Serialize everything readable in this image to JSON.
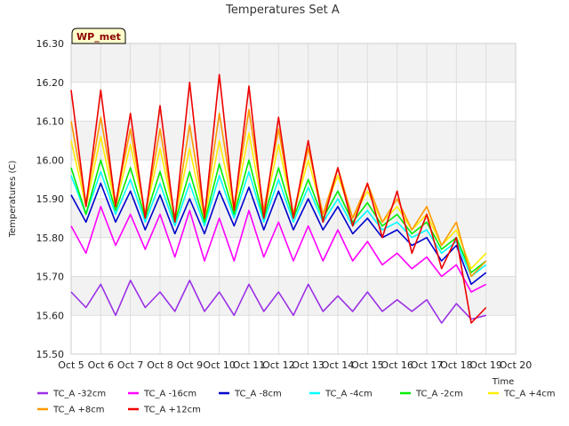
{
  "chart_data": {
    "type": "line",
    "title": "Temperatures Set A",
    "xlabel": "Time",
    "ylabel": "Temperatures (C)",
    "badge": "WP_met",
    "x_ticks": [
      "Oct 5",
      "Oct 6",
      "Oct 7",
      "Oct 8",
      "Oct 9",
      "Oct 10",
      "Oct 11",
      "Oct 12",
      "Oct 13",
      "Oct 14",
      "Oct 15",
      "Oct 16",
      "Oct 17",
      "Oct 18",
      "Oct 19",
      "Oct 20"
    ],
    "y_ticks": [
      "15.50",
      "15.60",
      "15.70",
      "15.80",
      "15.90",
      "16.00",
      "16.10",
      "16.20",
      "16.30"
    ],
    "xlim": [
      0,
      15
    ],
    "ylim": [
      15.5,
      16.3
    ],
    "grid": true,
    "legend_position": "bottom",
    "series": [
      {
        "name": "TC_A -32cm",
        "color": "#9b30e6",
        "x": [
          0.0,
          0.5,
          1.0,
          1.5,
          2.0,
          2.5,
          3.0,
          3.5,
          4.0,
          4.5,
          5.0,
          5.5,
          6.0,
          6.5,
          7.0,
          7.5,
          8.0,
          8.5,
          9.0,
          9.5,
          10.0,
          10.5,
          11.0,
          11.5,
          12.0,
          12.5,
          13.0,
          13.5,
          14.0
        ],
        "values": [
          15.66,
          15.62,
          15.68,
          15.6,
          15.69,
          15.62,
          15.66,
          15.61,
          15.69,
          15.61,
          15.66,
          15.6,
          15.68,
          15.61,
          15.66,
          15.6,
          15.68,
          15.61,
          15.65,
          15.61,
          15.66,
          15.61,
          15.64,
          15.61,
          15.64,
          15.58,
          15.63,
          15.59,
          15.6
        ]
      },
      {
        "name": "TC_A -16cm",
        "color": "#ff00ff",
        "x": [
          0.0,
          0.5,
          1.0,
          1.5,
          2.0,
          2.5,
          3.0,
          3.5,
          4.0,
          4.5,
          5.0,
          5.5,
          6.0,
          6.5,
          7.0,
          7.5,
          8.0,
          8.5,
          9.0,
          9.5,
          10.0,
          10.5,
          11.0,
          11.5,
          12.0,
          12.5,
          13.0,
          13.5,
          14.0
        ],
        "values": [
          15.83,
          15.76,
          15.88,
          15.78,
          15.86,
          15.77,
          15.86,
          15.75,
          15.87,
          15.74,
          15.85,
          15.74,
          15.87,
          15.75,
          15.84,
          15.74,
          15.83,
          15.74,
          15.82,
          15.74,
          15.79,
          15.73,
          15.76,
          15.72,
          15.75,
          15.7,
          15.73,
          15.66,
          15.68
        ]
      },
      {
        "name": "TC_A -8cm",
        "color": "#0000cc",
        "x": [
          0.0,
          0.5,
          1.0,
          1.5,
          2.0,
          2.5,
          3.0,
          3.5,
          4.0,
          4.5,
          5.0,
          5.5,
          6.0,
          6.5,
          7.0,
          7.5,
          8.0,
          8.5,
          9.0,
          9.5,
          10.0,
          10.5,
          11.0,
          11.5,
          12.0,
          12.5,
          13.0,
          13.5,
          14.0
        ],
        "values": [
          15.91,
          15.84,
          15.94,
          15.84,
          15.92,
          15.82,
          15.91,
          15.81,
          15.9,
          15.81,
          15.92,
          15.83,
          15.93,
          15.82,
          15.92,
          15.82,
          15.9,
          15.82,
          15.88,
          15.81,
          15.85,
          15.8,
          15.82,
          15.78,
          15.8,
          15.74,
          15.78,
          15.68,
          15.71
        ]
      },
      {
        "name": "TC_A -4cm",
        "color": "#00ffff",
        "x": [
          0.0,
          0.5,
          1.0,
          1.5,
          2.0,
          2.5,
          3.0,
          3.5,
          4.0,
          4.5,
          5.0,
          5.5,
          6.0,
          6.5,
          7.0,
          7.5,
          8.0,
          8.5,
          9.0,
          9.5,
          10.0,
          10.5,
          11.0,
          11.5,
          12.0,
          12.5,
          13.0,
          13.5,
          14.0
        ],
        "values": [
          15.96,
          15.86,
          15.97,
          15.86,
          15.95,
          15.84,
          15.94,
          15.83,
          15.94,
          15.83,
          15.96,
          15.85,
          15.97,
          15.84,
          15.95,
          15.84,
          15.93,
          15.84,
          15.9,
          15.83,
          15.87,
          15.82,
          15.84,
          15.8,
          15.82,
          15.76,
          15.79,
          15.7,
          15.73
        ]
      },
      {
        "name": "TC_A -2cm",
        "color": "#00ee00",
        "x": [
          0.0,
          0.5,
          1.0,
          1.5,
          2.0,
          2.5,
          3.0,
          3.5,
          4.0,
          4.5,
          5.0,
          5.5,
          6.0,
          6.5,
          7.0,
          7.5,
          8.0,
          8.5,
          9.0,
          9.5,
          10.0,
          10.5,
          11.0,
          11.5,
          12.0,
          12.5,
          13.0,
          13.5,
          14.0
        ],
        "values": [
          15.98,
          15.86,
          16.0,
          15.87,
          15.98,
          15.85,
          15.97,
          15.84,
          15.97,
          15.84,
          15.99,
          15.86,
          16.0,
          15.85,
          15.98,
          15.85,
          15.95,
          15.85,
          15.92,
          15.84,
          15.89,
          15.83,
          15.86,
          15.81,
          15.84,
          15.77,
          15.8,
          15.71,
          15.74
        ]
      },
      {
        "name": "TC_A +4cm",
        "color": "#ffee00",
        "x": [
          0.0,
          0.5,
          1.0,
          1.5,
          2.0,
          2.5,
          3.0,
          3.5,
          4.0,
          4.5,
          5.0,
          5.5,
          6.0,
          6.5,
          7.0,
          7.5,
          8.0,
          8.5,
          9.0,
          9.5,
          10.0,
          10.5,
          11.0,
          11.5,
          12.0,
          12.5,
          13.0,
          13.5,
          14.0
        ],
        "values": [
          16.05,
          15.88,
          16.06,
          15.88,
          16.04,
          15.86,
          16.03,
          15.85,
          16.03,
          15.85,
          16.05,
          15.87,
          16.07,
          15.86,
          16.04,
          15.86,
          16.0,
          15.86,
          15.96,
          15.85,
          15.92,
          15.84,
          15.88,
          15.82,
          15.86,
          15.78,
          15.82,
          15.72,
          15.76
        ]
      },
      {
        "name": "TC_A +8cm",
        "color": "#ff9900",
        "x": [
          0.0,
          0.5,
          1.0,
          1.5,
          2.0,
          2.5,
          3.0,
          3.5,
          4.0,
          4.5,
          5.0,
          5.5,
          6.0,
          6.5,
          7.0,
          7.5,
          8.0,
          8.5,
          9.0,
          9.5,
          10.0,
          10.5,
          11.0,
          11.5,
          12.0,
          12.5,
          13.0,
          13.5,
          14.0
        ],
        "values": [
          16.1,
          15.89,
          16.11,
          15.89,
          16.08,
          15.86,
          16.08,
          15.85,
          16.09,
          15.86,
          16.12,
          15.88,
          16.13,
          15.87,
          16.08,
          15.86,
          16.03,
          15.86,
          15.98,
          15.85,
          15.94,
          15.84,
          15.9,
          15.82,
          15.88,
          15.78,
          15.84,
          15.7,
          15.74
        ]
      },
      {
        "name": "TC_A +12cm",
        "color": "#ee0000",
        "x": [
          0.0,
          0.5,
          1.0,
          1.5,
          2.0,
          2.5,
          3.0,
          3.5,
          4.0,
          4.5,
          5.0,
          5.5,
          6.0,
          6.5,
          7.0,
          7.5,
          8.0,
          8.5,
          9.0,
          9.5,
          10.0,
          10.5,
          11.0,
          11.5,
          12.0,
          12.5,
          13.0,
          13.5,
          14.0
        ],
        "values": [
          16.18,
          15.88,
          16.18,
          15.88,
          16.12,
          15.85,
          16.14,
          15.84,
          16.2,
          15.85,
          16.22,
          15.87,
          16.19,
          15.85,
          16.11,
          15.85,
          16.05,
          15.84,
          15.98,
          15.83,
          15.94,
          15.8,
          15.92,
          15.76,
          15.86,
          15.72,
          15.8,
          15.58,
          15.62
        ]
      }
    ]
  }
}
